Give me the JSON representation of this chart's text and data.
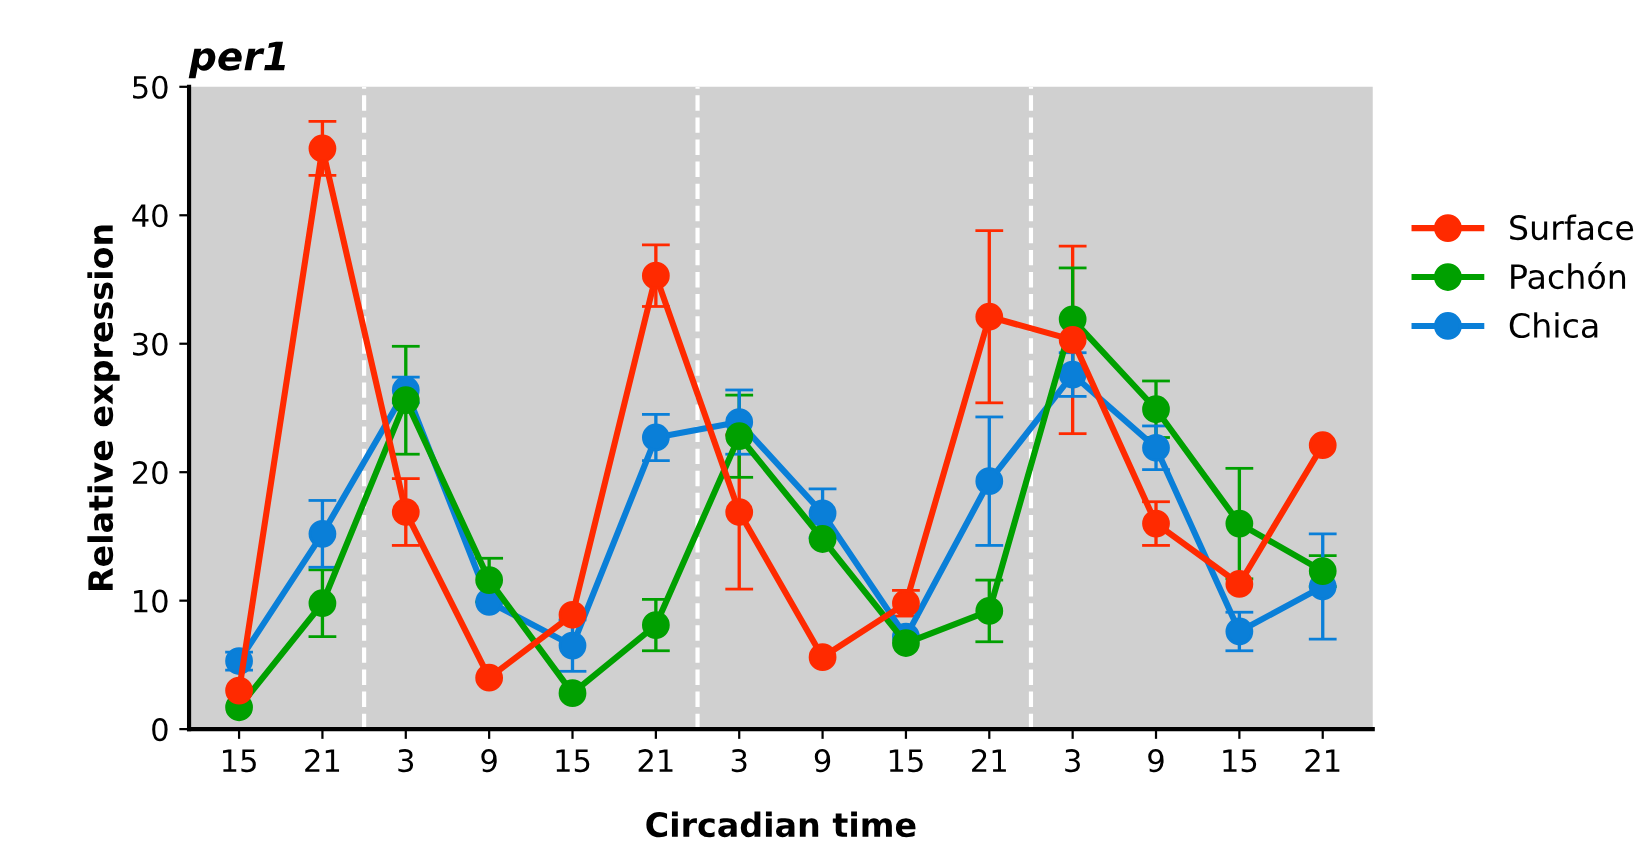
{
  "chart_data": {
    "type": "line",
    "title": "per1",
    "xlabel": "Circadian time",
    "ylabel": "Relative expression",
    "categories": [
      "15",
      "21",
      "3",
      "9",
      "15",
      "21",
      "3",
      "9",
      "15",
      "21",
      "3",
      "9",
      "15",
      "21"
    ],
    "series": [
      {
        "name": "Surface",
        "color": "#ff2a00",
        "values": [
          3.0,
          45.2,
          16.9,
          4.0,
          8.9,
          35.3,
          16.9,
          5.6,
          9.8,
          32.1,
          30.3,
          16.0,
          11.3,
          22.1
        ],
        "errors": [
          null,
          2.1,
          2.6,
          null,
          null,
          2.4,
          6,
          null,
          1,
          6.7,
          7.3,
          1.7,
          null,
          null
        ]
      },
      {
        "name": "Pachón",
        "color": "#00a000",
        "values": [
          1.7,
          9.8,
          25.6,
          11.6,
          2.8,
          8.1,
          22.8,
          14.8,
          6.7,
          9.2,
          31.9,
          24.9,
          16.0,
          12.3
        ],
        "errors": [
          null,
          2.6,
          4.2,
          1.7,
          null,
          2,
          3.2,
          null,
          null,
          2.4,
          4,
          2.2,
          4.3,
          1.2
        ]
      },
      {
        "name": "Chica",
        "color": "#0a7fd8",
        "values": [
          5.3,
          15.2,
          26.4,
          9.9,
          6.5,
          22.7,
          23.9,
          16.8,
          7.2,
          19.3,
          27.6,
          21.9,
          7.6,
          11.1
        ],
        "errors": [
          0.7,
          2.6,
          1,
          null,
          2,
          1.8,
          2.5,
          1.9,
          null,
          5,
          1.7,
          1.7,
          1.5,
          4.1
        ]
      }
    ],
    "ylim": [
      0,
      50
    ],
    "yticks": [
      0,
      10,
      20,
      30,
      40,
      50
    ],
    "grid": false,
    "legend": "right",
    "marker": "circle",
    "line_style": "solid"
  }
}
